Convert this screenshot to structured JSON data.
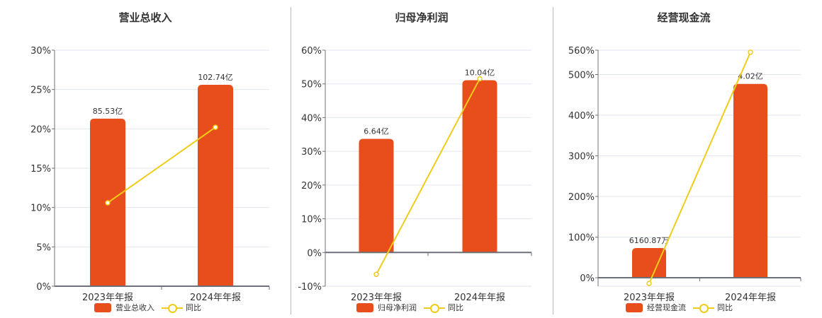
{
  "colors": {
    "bar": "#e84e1b",
    "line": "#f0cc1a",
    "grid": "#e1e6ef",
    "axis": "#6e7079"
  },
  "charts": [
    {
      "title": "营业总收入",
      "bar_legend": "营业总收入",
      "line_legend": "同比"
    },
    {
      "title": "归母净利润",
      "bar_legend": "归母净利润",
      "line_legend": "同比"
    },
    {
      "title": "经营现金流",
      "bar_legend": "经营现金流",
      "line_legend": "同比"
    }
  ],
  "chart_data": [
    {
      "type": "bar+line",
      "title": "营业总收入",
      "categories": [
        "2023年年报",
        "2024年年报"
      ],
      "series": [
        {
          "name": "营业总收入",
          "type": "bar",
          "labels": [
            "85.53亿",
            "102.74亿"
          ],
          "values_pct_axis": [
            21.3,
            25.6
          ]
        },
        {
          "name": "同比",
          "type": "line",
          "values": [
            10.6,
            20.2
          ]
        }
      ],
      "yticks": [
        "0%",
        "5%",
        "10%",
        "15%",
        "20%",
        "25%",
        "30%"
      ],
      "ylim": [
        0,
        30
      ],
      "grid": true,
      "legend_position": "bottom"
    },
    {
      "type": "bar+line",
      "title": "归母净利润",
      "categories": [
        "2023年年报",
        "2024年年报"
      ],
      "series": [
        {
          "name": "归母净利润",
          "type": "bar",
          "labels": [
            "6.64亿",
            "10.04亿"
          ],
          "values_pct_axis": [
            33.7,
            51.1
          ]
        },
        {
          "name": "同比",
          "type": "line",
          "values": [
            -6.5,
            51.5
          ]
        }
      ],
      "yticks": [
        "-10%",
        "0%",
        "10%",
        "20%",
        "30%",
        "40%",
        "50%",
        "60%"
      ],
      "ylim": [
        -10,
        60
      ],
      "grid": true,
      "legend_position": "bottom"
    },
    {
      "type": "bar+line",
      "title": "经营现金流",
      "categories": [
        "2023年年报",
        "2024年年报"
      ],
      "series": [
        {
          "name": "经营现金流",
          "type": "bar",
          "labels": [
            "6160.87万",
            "4.02亿"
          ],
          "values_pct_axis": [
            73,
            477
          ]
        },
        {
          "name": "同比",
          "type": "line",
          "values": [
            -14,
            555
          ]
        }
      ],
      "yticks": [
        "0%",
        "100%",
        "200%",
        "300%",
        "400%",
        "500%",
        "560%"
      ],
      "ylim": [
        -20,
        560
      ],
      "grid": true,
      "legend_position": "bottom"
    }
  ]
}
